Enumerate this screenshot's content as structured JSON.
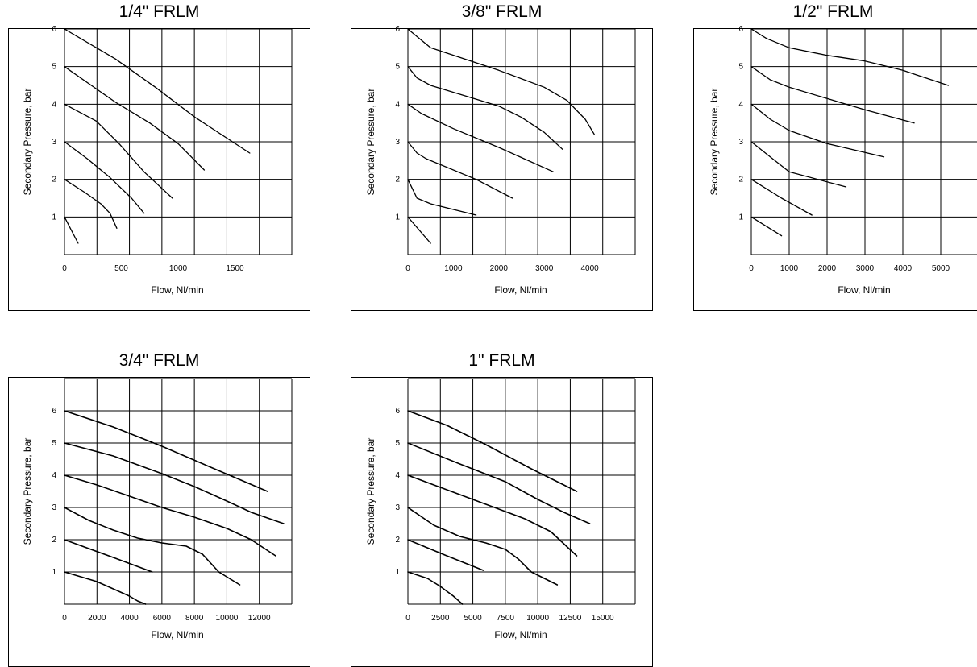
{
  "chart_data": [
    {
      "type": "line",
      "title": "1/4\" FRLM",
      "xlabel": "Flow, Nl/min",
      "ylabel": "Secondary Pressure, bar",
      "xlim": [
        0,
        2000
      ],
      "ylim": [
        0,
        6
      ],
      "xticks": [
        0,
        500,
        1000,
        1500
      ],
      "yticks": [
        1,
        2,
        3,
        4,
        5,
        6
      ],
      "grid": true,
      "series": [
        {
          "points": [
            [
              0,
              6
            ],
            [
              450,
              5.2
            ],
            [
              800,
              4.45
            ],
            [
              1150,
              3.65
            ],
            [
              1630,
              2.7
            ]
          ]
        },
        {
          "points": [
            [
              0,
              5
            ],
            [
              450,
              4.05
            ],
            [
              750,
              3.5
            ],
            [
              1000,
              2.95
            ],
            [
              1230,
              2.25
            ]
          ]
        },
        {
          "points": [
            [
              0,
              4
            ],
            [
              280,
              3.55
            ],
            [
              480,
              2.95
            ],
            [
              700,
              2.2
            ],
            [
              950,
              1.5
            ]
          ]
        },
        {
          "points": [
            [
              0,
              3
            ],
            [
              200,
              2.55
            ],
            [
              400,
              2.05
            ],
            [
              590,
              1.5
            ],
            [
              700,
              1.1
            ]
          ]
        },
        {
          "points": [
            [
              0,
              2
            ],
            [
              180,
              1.65
            ],
            [
              320,
              1.35
            ],
            [
              400,
              1.1
            ],
            [
              460,
              0.7
            ]
          ]
        },
        {
          "points": [
            [
              0,
              1
            ],
            [
              120,
              0.3
            ]
          ]
        }
      ]
    },
    {
      "type": "line",
      "title": "3/8\" FRLM",
      "xlabel": "Flow, Nl/min",
      "ylabel": "Secondary Pressure, bar",
      "xlim": [
        0,
        5000
      ],
      "ylim": [
        0,
        6
      ],
      "xticks": [
        0,
        1000,
        2000,
        3000,
        4000
      ],
      "yticks": [
        1,
        2,
        3,
        4,
        5,
        6
      ],
      "grid": true,
      "series": [
        {
          "points": [
            [
              0,
              6
            ],
            [
              300,
              5.7
            ],
            [
              500,
              5.5
            ],
            [
              2000,
              4.9
            ],
            [
              3000,
              4.45
            ],
            [
              3500,
              4.1
            ],
            [
              3900,
              3.6
            ],
            [
              4100,
              3.2
            ]
          ]
        },
        {
          "points": [
            [
              0,
              5
            ],
            [
              200,
              4.7
            ],
            [
              500,
              4.5
            ],
            [
              2000,
              3.95
            ],
            [
              2500,
              3.65
            ],
            [
              3000,
              3.25
            ],
            [
              3400,
              2.8
            ]
          ]
        },
        {
          "points": [
            [
              0,
              4
            ],
            [
              300,
              3.75
            ],
            [
              1000,
              3.35
            ],
            [
              2000,
              2.85
            ],
            [
              3200,
              2.2
            ]
          ]
        },
        {
          "points": [
            [
              0,
              3
            ],
            [
              200,
              2.7
            ],
            [
              400,
              2.55
            ],
            [
              1500,
              2.0
            ],
            [
              2300,
              1.5
            ]
          ]
        },
        {
          "points": [
            [
              0,
              2
            ],
            [
              100,
              1.75
            ],
            [
              200,
              1.5
            ],
            [
              500,
              1.35
            ],
            [
              1500,
              1.05
            ]
          ]
        },
        {
          "points": [
            [
              0,
              1
            ],
            [
              500,
              0.3
            ]
          ]
        }
      ]
    },
    {
      "type": "line",
      "title": "1/2\" FRLM",
      "xlabel": "Flow, Nl/min",
      "ylabel": "Secondary Pressure, bar",
      "xlim": [
        0,
        6000
      ],
      "ylim": [
        0,
        6
      ],
      "xticks": [
        0,
        1000,
        2000,
        3000,
        4000,
        5000
      ],
      "yticks": [
        1,
        2,
        3,
        4,
        5,
        6
      ],
      "grid": true,
      "series": [
        {
          "points": [
            [
              0,
              6
            ],
            [
              400,
              5.75
            ],
            [
              1000,
              5.5
            ],
            [
              2000,
              5.3
            ],
            [
              3000,
              5.15
            ],
            [
              4000,
              4.9
            ],
            [
              5200,
              4.5
            ]
          ]
        },
        {
          "points": [
            [
              0,
              5
            ],
            [
              500,
              4.65
            ],
            [
              1000,
              4.45
            ],
            [
              2000,
              4.15
            ],
            [
              3000,
              3.85
            ],
            [
              4300,
              3.5
            ]
          ]
        },
        {
          "points": [
            [
              0,
              4
            ],
            [
              500,
              3.6
            ],
            [
              1000,
              3.3
            ],
            [
              2000,
              2.95
            ],
            [
              3500,
              2.6
            ]
          ]
        },
        {
          "points": [
            [
              0,
              3
            ],
            [
              500,
              2.6
            ],
            [
              1000,
              2.2
            ],
            [
              2500,
              1.8
            ]
          ]
        },
        {
          "points": [
            [
              0,
              2
            ],
            [
              800,
              1.5
            ],
            [
              1600,
              1.05
            ]
          ]
        },
        {
          "points": [
            [
              0,
              1
            ],
            [
              800,
              0.5
            ]
          ]
        }
      ]
    },
    {
      "type": "line",
      "title": "3/4\" FRLM",
      "xlabel": "Flow, Nl/min",
      "ylabel": "Secondary Pressure, bar",
      "xlim": [
        0,
        14000
      ],
      "ylim": [
        0,
        7
      ],
      "xticks": [
        0,
        2000,
        4000,
        6000,
        8000,
        10000,
        12000
      ],
      "yticks": [
        1,
        2,
        3,
        4,
        5,
        6
      ],
      "grid": true,
      "series": [
        {
          "points": [
            [
              0,
              6
            ],
            [
              3000,
              5.5
            ],
            [
              6000,
              4.9
            ],
            [
              9000,
              4.25
            ],
            [
              12500,
              3.5
            ]
          ]
        },
        {
          "points": [
            [
              0,
              5
            ],
            [
              3000,
              4.6
            ],
            [
              6000,
              4.05
            ],
            [
              8000,
              3.65
            ],
            [
              10000,
              3.2
            ],
            [
              11500,
              2.85
            ],
            [
              13500,
              2.5
            ]
          ]
        },
        {
          "points": [
            [
              0,
              4
            ],
            [
              2000,
              3.7
            ],
            [
              4000,
              3.35
            ],
            [
              6000,
              3.0
            ],
            [
              8000,
              2.7
            ],
            [
              10000,
              2.35
            ],
            [
              11500,
              2.0
            ],
            [
              13000,
              1.5
            ]
          ]
        },
        {
          "points": [
            [
              0,
              3
            ],
            [
              1500,
              2.6
            ],
            [
              3000,
              2.3
            ],
            [
              4500,
              2.05
            ],
            [
              6000,
              1.9
            ],
            [
              7500,
              1.8
            ],
            [
              8500,
              1.55
            ],
            [
              9500,
              1.0
            ],
            [
              10800,
              0.6
            ]
          ]
        },
        {
          "points": [
            [
              0,
              2
            ],
            [
              3000,
              1.45
            ],
            [
              5400,
              1.0
            ]
          ]
        },
        {
          "points": [
            [
              0,
              1
            ],
            [
              2000,
              0.7
            ],
            [
              4000,
              0.25
            ],
            [
              4500,
              0.1
            ],
            [
              5000,
              0.0
            ]
          ]
        }
      ]
    },
    {
      "type": "line",
      "title": "1\" FRLM",
      "xlabel": "Flow, Nl/min",
      "ylabel": "Secondary Pressure, bar",
      "xlim": [
        0,
        17500
      ],
      "ylim": [
        0,
        7
      ],
      "xticks": [
        0,
        2500,
        5000,
        7500,
        10000,
        12500,
        15000
      ],
      "yticks": [
        1,
        2,
        3,
        4,
        5,
        6
      ],
      "grid": true,
      "series": [
        {
          "points": [
            [
              0,
              6
            ],
            [
              3000,
              5.55
            ],
            [
              6000,
              4.95
            ],
            [
              9500,
              4.2
            ],
            [
              13000,
              3.5
            ]
          ]
        },
        {
          "points": [
            [
              0,
              5
            ],
            [
              4000,
              4.35
            ],
            [
              7500,
              3.8
            ],
            [
              10000,
              3.25
            ],
            [
              12000,
              2.85
            ],
            [
              14000,
              2.5
            ]
          ]
        },
        {
          "points": [
            [
              0,
              4
            ],
            [
              3000,
              3.55
            ],
            [
              6000,
              3.1
            ],
            [
              9000,
              2.65
            ],
            [
              11000,
              2.25
            ],
            [
              13000,
              1.5
            ]
          ]
        },
        {
          "points": [
            [
              0,
              3
            ],
            [
              2000,
              2.45
            ],
            [
              4000,
              2.1
            ],
            [
              6000,
              1.9
            ],
            [
              7500,
              1.7
            ],
            [
              8500,
              1.4
            ],
            [
              9500,
              1.0
            ],
            [
              11500,
              0.6
            ]
          ]
        },
        {
          "points": [
            [
              0,
              2
            ],
            [
              3000,
              1.5
            ],
            [
              5800,
              1.05
            ]
          ]
        },
        {
          "points": [
            [
              0,
              1
            ],
            [
              1500,
              0.8
            ],
            [
              2500,
              0.55
            ],
            [
              3500,
              0.25
            ],
            [
              4200,
              0.0
            ]
          ]
        }
      ]
    }
  ]
}
